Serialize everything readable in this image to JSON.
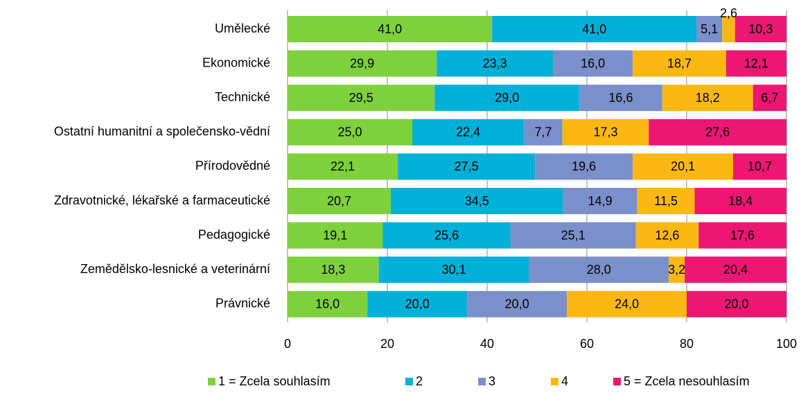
{
  "chart_data": {
    "type": "stacked_barh",
    "categories": [
      "Umělecké",
      "Ekonomické",
      "Technické",
      "Ostatní humanitní a společensko-vědní",
      "Přírodovědné",
      "Zdravotnické, lékařské a farmaceutické",
      "Pedagogické",
      "Zemědělsko-lesnické a veterinární",
      "Právnické"
    ],
    "series": [
      {
        "name": "1 = Zcela souhlasím",
        "color": "#7ed13d",
        "values": [
          41.0,
          29.9,
          29.5,
          25.0,
          22.1,
          20.7,
          19.1,
          18.3,
          16.0
        ],
        "value_labels": [
          "41,0",
          "29,9",
          "29,5",
          "25,0",
          "22,1",
          "20,7",
          "19,1",
          "18,3",
          "16,0"
        ]
      },
      {
        "name": "2",
        "color": "#00b0d8",
        "values": [
          41.0,
          23.3,
          29.0,
          22.4,
          27.5,
          34.5,
          25.6,
          30.1,
          20.0
        ],
        "value_labels": [
          "41,0",
          "23,3",
          "29,0",
          "22,4",
          "27,5",
          "34,5",
          "25,6",
          "30,1",
          "20,0"
        ]
      },
      {
        "name": "3",
        "color": "#7b8fcb",
        "values": [
          5.1,
          16.0,
          16.6,
          7.7,
          19.6,
          14.9,
          25.1,
          28.0,
          20.0
        ],
        "value_labels": [
          "5,1",
          "16,0",
          "16,6",
          "7,7",
          "19,6",
          "14,9",
          "25,1",
          "28,0",
          "20,0"
        ]
      },
      {
        "name": "4",
        "color": "#fbb814",
        "values": [
          2.6,
          18.7,
          18.2,
          17.3,
          20.1,
          11.5,
          12.6,
          3.2,
          24.0
        ],
        "value_labels": [
          "2,6",
          "18,7",
          "18,2",
          "17,3",
          "20,1",
          "11,5",
          "12,6",
          "3,2",
          "24,0"
        ]
      },
      {
        "name": "5 = Zcela nesouhlasím",
        "color": "#eb1773",
        "values": [
          10.3,
          12.1,
          6.7,
          27.6,
          10.7,
          18.4,
          17.6,
          20.4,
          20.0
        ],
        "value_labels": [
          "10,3",
          "12,1",
          "6,7",
          "27,6",
          "10,7",
          "18,4",
          "17,6",
          "20,4",
          "20,0"
        ]
      }
    ],
    "xlim": [
      0,
      100
    ],
    "xticks": [
      0,
      20,
      40,
      60,
      80,
      100
    ],
    "grid": true,
    "legend": "bottom"
  }
}
